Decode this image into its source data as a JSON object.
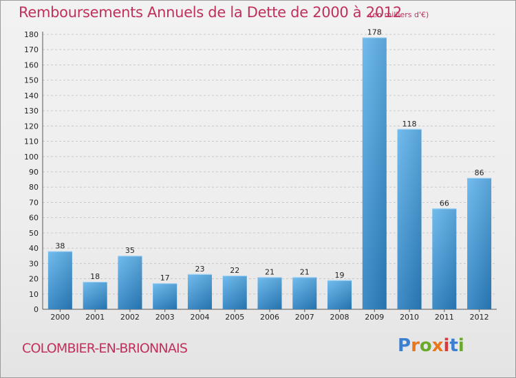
{
  "header": {
    "title": "Remboursements Annuels de la Dette de 2000 à 2012",
    "subtitle": "(en milliers d'€)"
  },
  "footer": {
    "commune": "COLOMBIER-EN-BRIONNAIS",
    "logo": {
      "text": "Proxiti",
      "letter_colors": [
        "#3a7fd0",
        "#e8771e",
        "#6aaa2a",
        "#e8771e",
        "#d63a3a",
        "#3a7fd0",
        "#6aaa2a"
      ]
    }
  },
  "colors": {
    "text_accent": "#c0305a",
    "bar_top": "#62b4ec",
    "bar_bottom": "#2a7fc0"
  },
  "chart_data": {
    "type": "bar",
    "categories": [
      "2000",
      "2001",
      "2002",
      "2003",
      "2004",
      "2005",
      "2006",
      "2007",
      "2008",
      "2009",
      "2010",
      "2011",
      "2012"
    ],
    "values": [
      38,
      18,
      35,
      17,
      23,
      22,
      21,
      21,
      19,
      178,
      118,
      66,
      86
    ],
    "ylim": [
      0,
      180
    ],
    "yticks": [
      0,
      10,
      20,
      30,
      40,
      50,
      60,
      70,
      80,
      90,
      100,
      110,
      120,
      130,
      140,
      150,
      160,
      170,
      180
    ],
    "grid": true,
    "data_labels": true
  }
}
